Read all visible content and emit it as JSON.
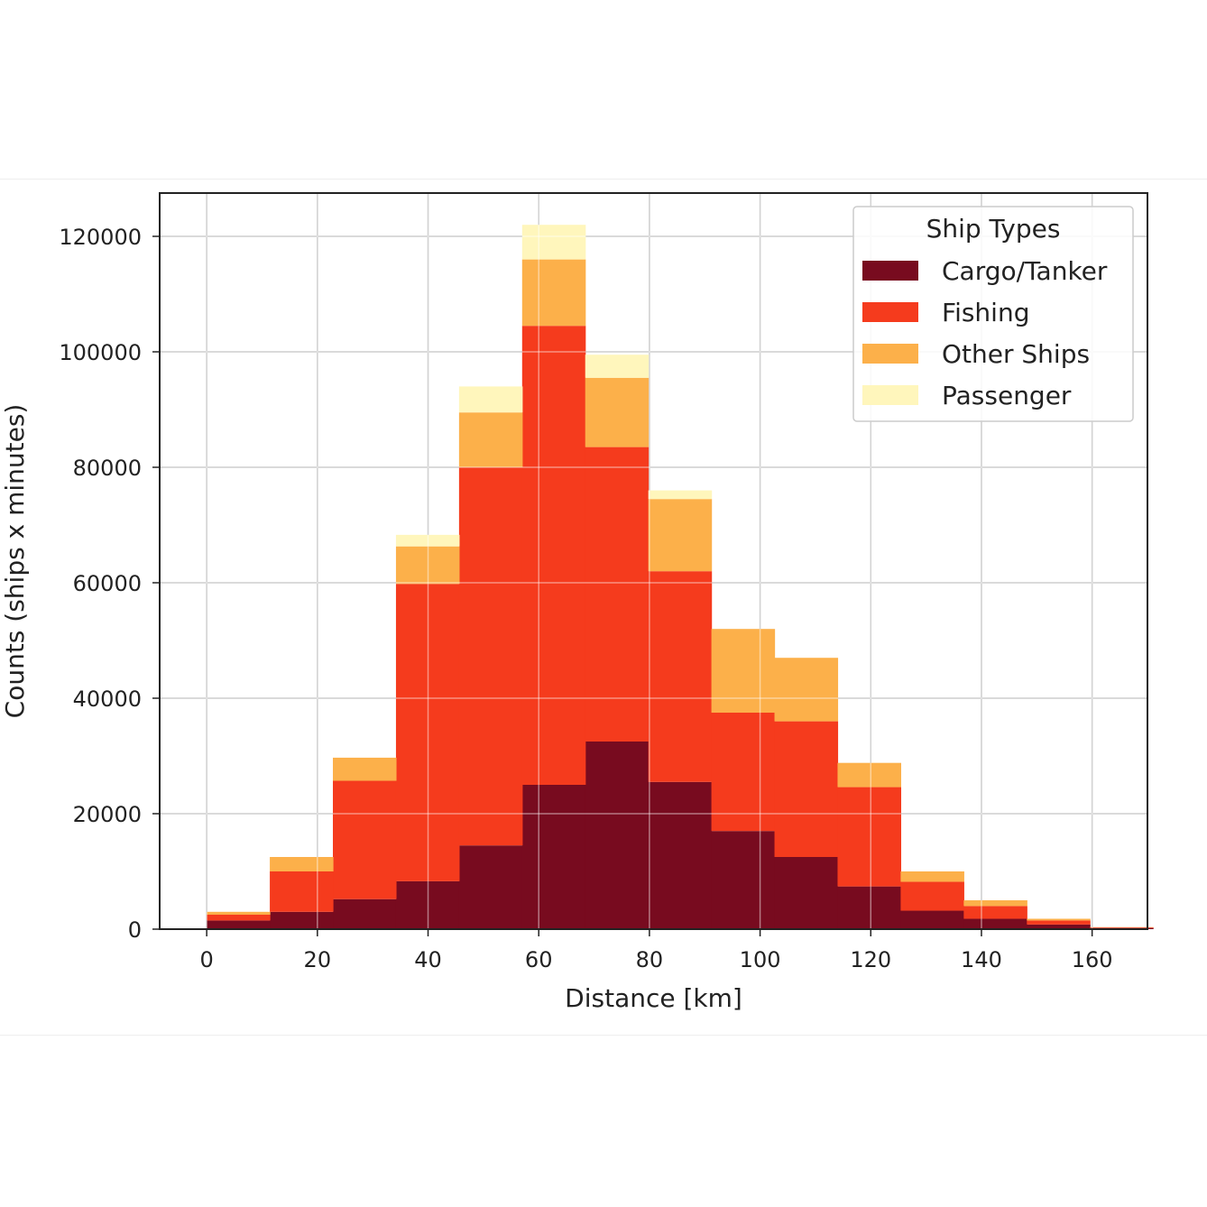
{
  "chart_data": {
    "type": "bar",
    "stacked": true,
    "histogram": true,
    "xlabel": "Distance [km]",
    "ylabel": "Counts (ships x minutes)",
    "xlim": [
      -8.5,
      170
    ],
    "ylim": [
      0,
      127500
    ],
    "grid": true,
    "xticks": [
      0,
      20,
      40,
      60,
      80,
      100,
      120,
      140,
      160
    ],
    "xtick_labels": [
      "0",
      "20",
      "40",
      "60",
      "80",
      "100",
      "120",
      "140",
      "160"
    ],
    "yticks": [
      0,
      20000,
      40000,
      60000,
      80000,
      100000,
      120000
    ],
    "ytick_labels": [
      "0",
      "20000",
      "40000",
      "60000",
      "80000",
      "100000",
      "120000"
    ],
    "bin_edges": [
      0,
      11.4,
      22.8,
      34.2,
      45.6,
      57,
      68.4,
      79.8,
      91.2,
      102.6,
      114,
      125.4,
      136.8,
      148.2,
      159.6,
      171
    ],
    "legend": {
      "title": "Ship Types",
      "position": "top-right"
    },
    "series": [
      {
        "name": "Cargo/Tanker",
        "color": "#780b1f",
        "values": [
          1500,
          3000,
          5200,
          8300,
          14500,
          25000,
          32500,
          25500,
          17000,
          12500,
          7400,
          3200,
          1800,
          800,
          200
        ]
      },
      {
        "name": "Fishing",
        "color": "#f53b1d",
        "values": [
          1000,
          7000,
          20500,
          51500,
          65500,
          79500,
          51000,
          36500,
          20500,
          23500,
          17200,
          5000,
          2200,
          700,
          100
        ]
      },
      {
        "name": "Other Ships",
        "color": "#fcb04a",
        "values": [
          500,
          2500,
          4000,
          6500,
          9500,
          11500,
          12000,
          12500,
          14500,
          11000,
          4200,
          1800,
          1000,
          300,
          50
        ]
      },
      {
        "name": "Passenger",
        "color": "#fff6bc",
        "values": [
          0,
          0,
          0,
          2000,
          4500,
          6000,
          4000,
          1500,
          0,
          0,
          0,
          0,
          0,
          0,
          0
        ]
      }
    ]
  }
}
